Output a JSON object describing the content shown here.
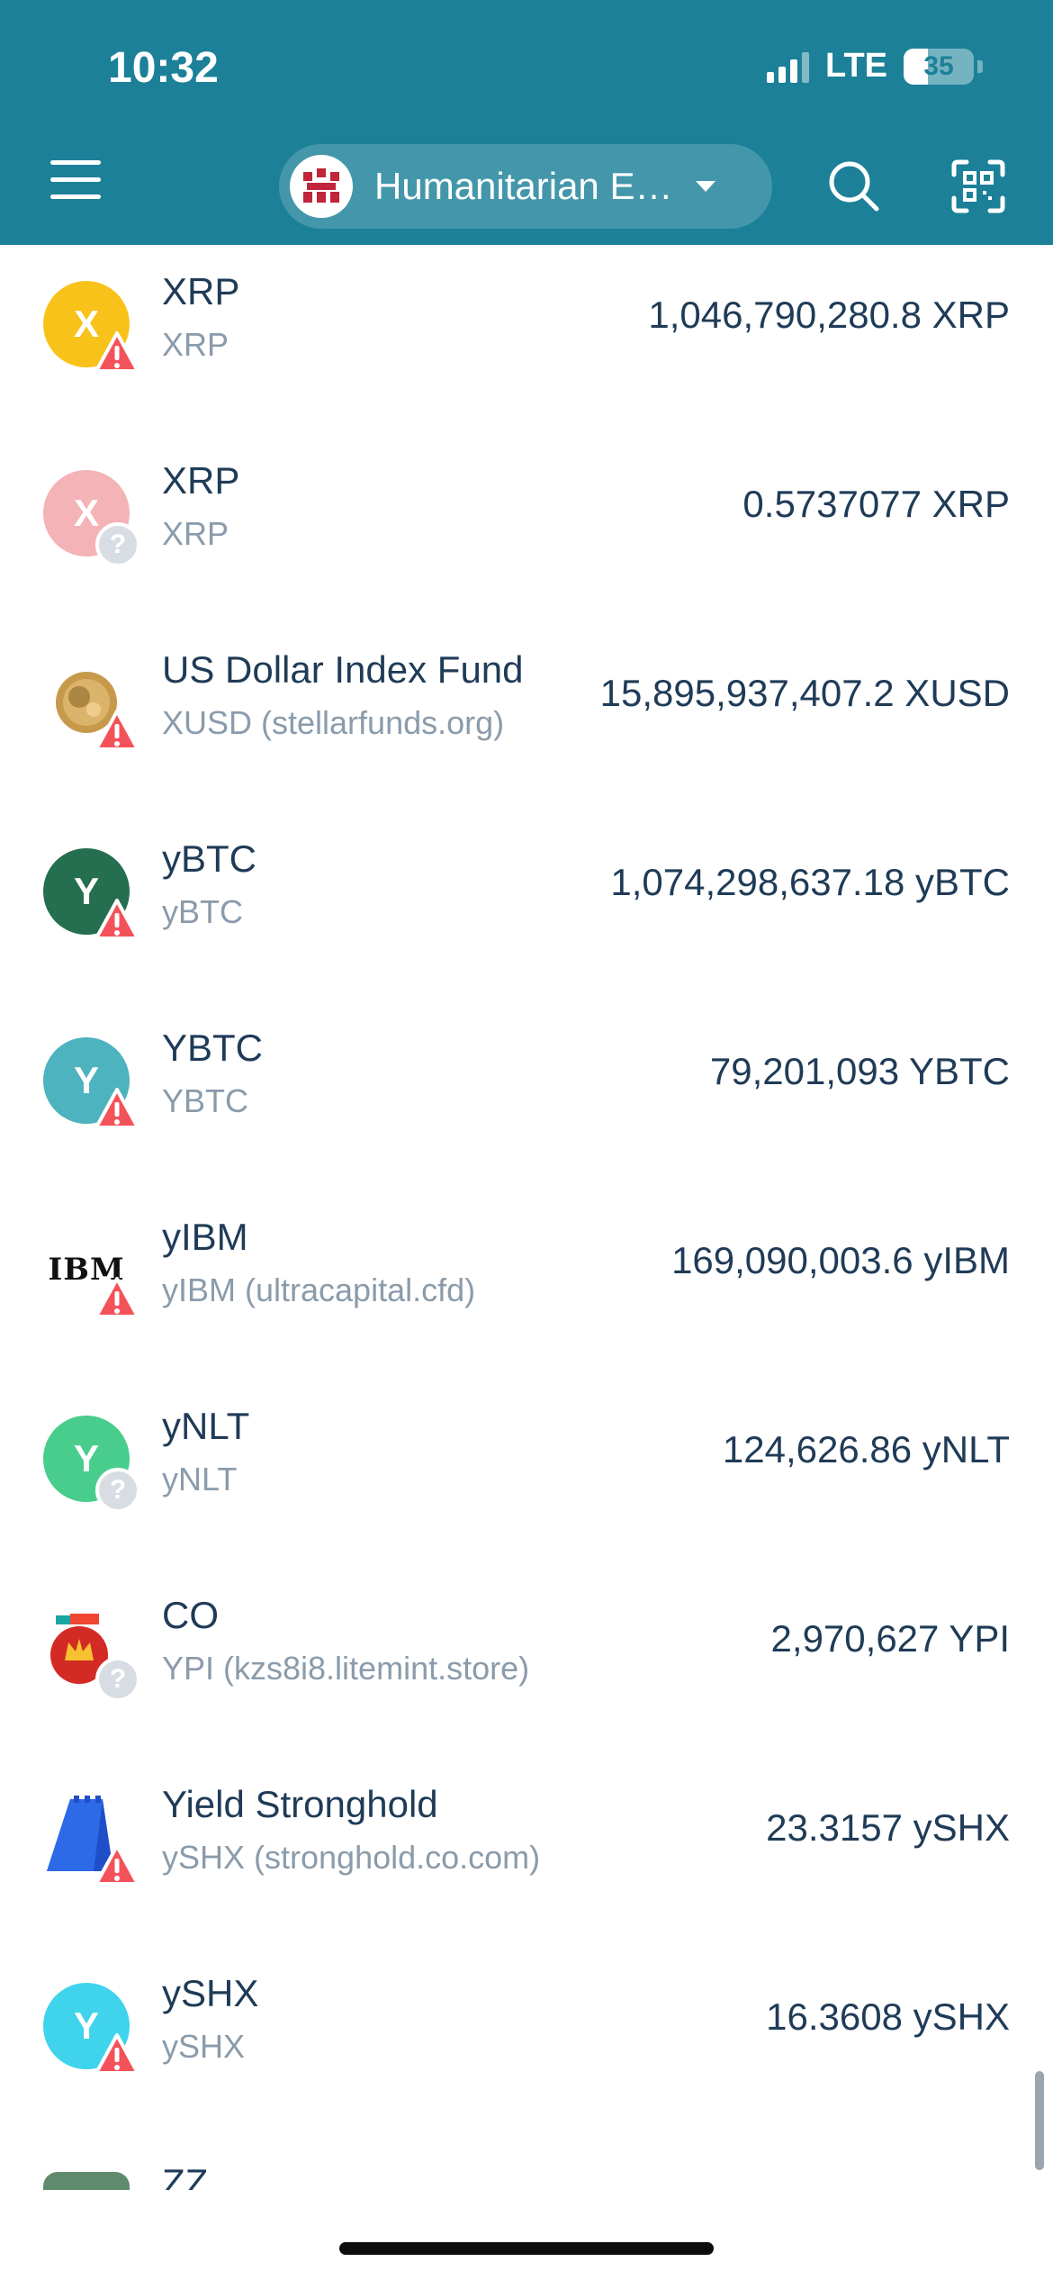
{
  "status_bar": {
    "time": "10:32",
    "network": "LTE",
    "battery": "35"
  },
  "header": {
    "account_name": "Humanitarian E…",
    "menu_icon": "hamburger-menu-icon",
    "search_icon": "search-icon",
    "scan_icon": "qr-scan-icon"
  },
  "assets": [
    {
      "name": "XRP",
      "code": "XRP",
      "amount": "1,046,790,280.8 XRP",
      "icon_letter": "X",
      "icon_color": "#f9c21b",
      "badge": "warning"
    },
    {
      "name": "XRP",
      "code": "XRP",
      "amount": "0.5737077 XRP",
      "icon_letter": "X",
      "icon_color": "#f4b3b6",
      "badge": "unknown"
    },
    {
      "name": "US Dollar Index Fund",
      "code": "XUSD (stellarfunds.org)",
      "amount": "15,895,937,407.2 XUSD",
      "icon_letter": "",
      "icon_color": "#b58a3a",
      "badge": "warning"
    },
    {
      "name": "yBTC",
      "code": "yBTC",
      "amount": "1,074,298,637.18 yBTC",
      "icon_letter": "Y",
      "icon_color": "#256e4f",
      "badge": "warning"
    },
    {
      "name": "YBTC",
      "code": "YBTC",
      "amount": "79,201,093 YBTC",
      "icon_letter": "Y",
      "icon_color": "#4db3be",
      "badge": "warning"
    },
    {
      "name": "yIBM",
      "code": "yIBM (ultracapital.cfd)",
      "amount": "169,090,003.6 yIBM",
      "icon_letter": "IBM",
      "icon_color": "#ffffff",
      "badge": "warning"
    },
    {
      "name": "yNLT",
      "code": "yNLT",
      "amount": "124,626.86 yNLT",
      "icon_letter": "Y",
      "icon_color": "#49cd8d",
      "badge": "unknown"
    },
    {
      "name": "CO",
      "code": "YPI (kzs8i8.litemint.store)",
      "amount": "2,970,627 YPI",
      "icon_letter": "",
      "icon_color": "#d42a25",
      "badge": "unknown"
    },
    {
      "name": "Yield Stronghold",
      "code": "ySHX (stronghold.co.com)",
      "amount": "23.3157 ySHX",
      "icon_letter": "",
      "icon_color": "#1f4fc8",
      "badge": "warning"
    },
    {
      "name": "ySHX",
      "code": "ySHX",
      "amount": "16.3608 ySHX",
      "icon_letter": "Y",
      "icon_color": "#3fd3ec",
      "badge": "warning"
    },
    {
      "name": "ZZ",
      "code": "",
      "amount": "",
      "icon_letter": "",
      "icon_color": "#5f8a6b",
      "badge": ""
    }
  ]
}
